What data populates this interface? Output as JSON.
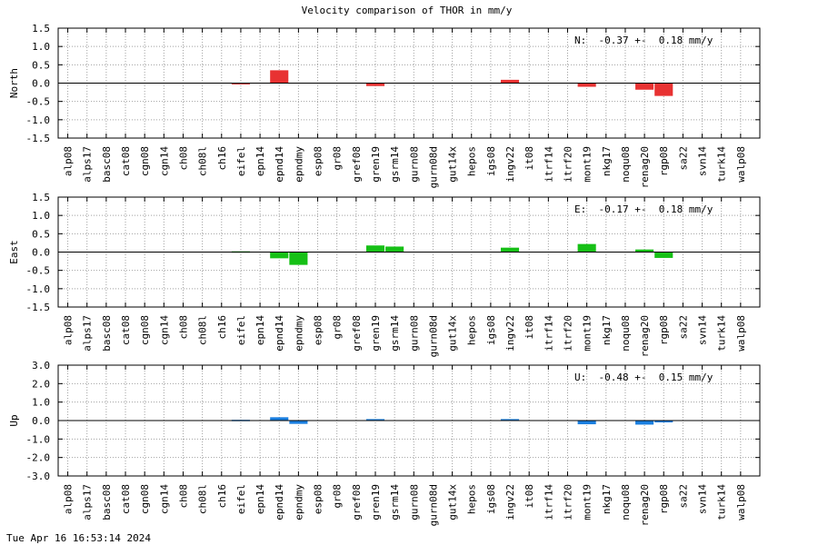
{
  "title": "Velocity comparison of THOR in mm/y",
  "footer": "Tue Apr 16 16:53:14 2024",
  "colors": {
    "north": "#e83232",
    "east": "#16c016",
    "up": "#1a7fe0"
  },
  "chart_data": [
    {
      "type": "bar",
      "ylabel": "North",
      "annotation": "N:  -0.37 +-  0.18 mm/y",
      "ylim": [
        -1.5,
        1.5
      ],
      "yticks": [
        "1.5",
        "1.0",
        "0.5",
        "0.0",
        "-0.5",
        "-1.0",
        "-1.5"
      ],
      "grid": true,
      "categories": [
        "alp08",
        "alps17",
        "basc08",
        "cat08",
        "cgn08",
        "cgn14",
        "ch08",
        "ch08l",
        "ch16",
        "eifel",
        "epn14",
        "epnd14",
        "epndmy",
        "esp08",
        "gr08",
        "gref08",
        "gren19",
        "gsrm14",
        "gurn08",
        "gurn08d",
        "gut14x",
        "hepos",
        "igs08",
        "ingv22",
        "it08",
        "itrf14",
        "itrf20",
        "mont19",
        "nkg17",
        "noqu08",
        "renag20",
        "rgp08",
        "sa22",
        "svn14",
        "turk14",
        "walp08"
      ],
      "values": [
        null,
        null,
        null,
        null,
        null,
        null,
        null,
        null,
        null,
        -0.02,
        null,
        0.35,
        null,
        null,
        null,
        null,
        -0.08,
        null,
        null,
        null,
        null,
        null,
        null,
        0.09,
        null,
        null,
        null,
        -0.1,
        null,
        null,
        -0.18,
        -0.35,
        null,
        null,
        null,
        null
      ]
    },
    {
      "type": "bar",
      "ylabel": "East",
      "annotation": "E:  -0.17 +-  0.18 mm/y",
      "ylim": [
        -1.5,
        1.5
      ],
      "yticks": [
        "1.5",
        "1.0",
        "0.5",
        "0.0",
        "-0.5",
        "-1.0",
        "-1.5"
      ],
      "grid": true,
      "categories": [
        "alp08",
        "alps17",
        "basc08",
        "cat08",
        "cgn08",
        "cgn14",
        "ch08",
        "ch08l",
        "ch16",
        "eifel",
        "epn14",
        "epnd14",
        "epndmy",
        "esp08",
        "gr08",
        "gref08",
        "gren19",
        "gsrm14",
        "gurn08",
        "gurn08d",
        "gut14x",
        "hepos",
        "igs08",
        "ingv22",
        "it08",
        "itrf14",
        "itrf20",
        "mont19",
        "nkg17",
        "noqu08",
        "renag20",
        "rgp08",
        "sa22",
        "svn14",
        "turk14",
        "walp08"
      ],
      "values": [
        null,
        null,
        null,
        null,
        null,
        null,
        null,
        null,
        null,
        0.02,
        null,
        -0.17,
        -0.35,
        null,
        null,
        null,
        0.18,
        0.15,
        null,
        null,
        null,
        null,
        null,
        0.12,
        null,
        null,
        null,
        0.22,
        null,
        null,
        0.07,
        -0.16,
        null,
        null,
        null,
        null
      ]
    },
    {
      "type": "bar",
      "ylabel": "Up",
      "annotation": "U:  -0.48 +-  0.15 mm/y",
      "ylim": [
        -3.0,
        3.0
      ],
      "yticks": [
        "3.0",
        "2.0",
        "1.0",
        "0.0",
        "-1.0",
        "-2.0",
        "-3.0"
      ],
      "grid": true,
      "categories": [
        "alp08",
        "alps17",
        "basc08",
        "cat08",
        "cgn08",
        "cgn14",
        "ch08",
        "ch08l",
        "ch16",
        "eifel",
        "epn14",
        "epnd14",
        "epndmy",
        "esp08",
        "gr08",
        "gref08",
        "gren19",
        "gsrm14",
        "gurn08",
        "gurn08d",
        "gut14x",
        "hepos",
        "igs08",
        "ingv22",
        "it08",
        "itrf14",
        "itrf20",
        "mont19",
        "nkg17",
        "noqu08",
        "renag20",
        "rgp08",
        "sa22",
        "svn14",
        "turk14",
        "walp08"
      ],
      "values": [
        null,
        null,
        null,
        null,
        null,
        null,
        null,
        null,
        null,
        0.04,
        null,
        0.18,
        -0.18,
        null,
        null,
        null,
        0.08,
        null,
        null,
        null,
        null,
        null,
        null,
        0.08,
        null,
        null,
        null,
        -0.2,
        null,
        null,
        -0.22,
        -0.1,
        null,
        null,
        null,
        null
      ]
    }
  ]
}
